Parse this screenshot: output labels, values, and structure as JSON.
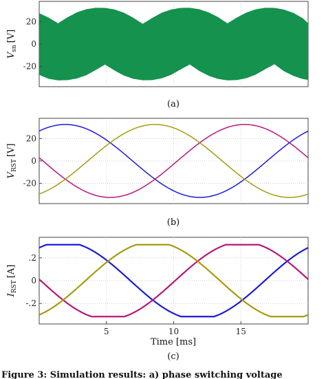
{
  "chart_data": [
    {
      "type": "area",
      "caption": "(a)",
      "ylabel": "V_sn [V]",
      "ylabel_main": "V",
      "ylabel_sub": "sn",
      "ylabel_unit": "[V]",
      "xlim": [
        0,
        20
      ],
      "ylim": [
        -38,
        38
      ],
      "yticks": [
        20,
        0,
        -20
      ],
      "grid": true,
      "series": [
        {
          "color": "#14924e",
          "x": [
            0,
            0.7,
            1.4,
            2.1,
            2.8,
            3.5,
            4.2,
            4.9,
            5.6,
            6.3,
            7.0,
            7.7,
            8.4,
            9.1,
            9.8,
            10.5,
            11.2,
            11.9,
            12.6,
            13.3,
            14.0,
            14.7,
            15.4,
            16.1,
            16.8,
            17.5,
            18.2,
            18.9,
            19.6,
            20
          ],
          "upper": [
            27.5,
            23.5,
            18.5,
            23.8,
            28.2,
            31.0,
            32.3,
            32.2,
            30.8,
            27.9,
            23.4,
            18.0,
            23.2,
            27.8,
            30.7,
            32.2,
            32.3,
            31.0,
            28.2,
            24.0,
            18.4,
            23.6,
            28.0,
            30.9,
            32.3,
            32.2,
            30.7,
            27.8,
            23.0,
            18.5
          ],
          "lower": [
            -27.5,
            -31.0,
            -32.4,
            -32.2,
            -30.7,
            -27.8,
            -23.2,
            -18.3,
            -23.6,
            -28.1,
            -31.0,
            -32.3,
            -32.2,
            -30.6,
            -27.5,
            -22.8,
            -18.2,
            -24.0,
            -28.3,
            -31.1,
            -32.4,
            -32.1,
            -30.5,
            -27.3,
            -22.5,
            -18.0,
            -24.2,
            -28.4,
            -31.2,
            -32.0
          ]
        }
      ]
    },
    {
      "type": "line",
      "caption": "(b)",
      "ylabel": "V_RST [V]",
      "ylabel_main": "V",
      "ylabel_sub": "RST",
      "ylabel_unit": "[V]",
      "xlim": [
        0,
        20
      ],
      "ylim": [
        -38,
        38
      ],
      "yticks": [
        20,
        0,
        -20
      ],
      "grid": true,
      "series": [
        {
          "color": "#1a1ad6",
          "amplitude": 32.5,
          "period_ms": 20,
          "phase_deg": 55
        },
        {
          "color": "#b8157a",
          "amplitude": 32.5,
          "period_ms": 20,
          "phase_deg": 175
        },
        {
          "color": "#a69a0e",
          "amplitude": 32.5,
          "period_ms": 20,
          "phase_deg": 295
        }
      ]
    },
    {
      "type": "line",
      "caption": "(c)",
      "ylabel": "I_RST [A]",
      "ylabel_main": "I",
      "ylabel_sub": "RST",
      "ylabel_unit": "[A]",
      "xlabel": "Time [ms]",
      "xlim": [
        0,
        20
      ],
      "ylim": [
        -0.38,
        0.38
      ],
      "yticks": [
        0.2,
        0,
        -0.2
      ],
      "xticks": [
        5,
        10,
        15
      ],
      "grid": true,
      "clip": 0.315,
      "series": [
        {
          "color": "#1a1ad6",
          "amplitude": 0.34,
          "period_ms": 20,
          "phase_deg": 58
        },
        {
          "color": "#b8157a",
          "amplitude": 0.34,
          "period_ms": 20,
          "phase_deg": 178
        },
        {
          "color": "#a69a0e",
          "amplitude": 0.34,
          "period_ms": 20,
          "phase_deg": 298
        }
      ]
    }
  ],
  "figure_caption_fragment": "Figure 3: Simulation results: a) phase switching voltage"
}
